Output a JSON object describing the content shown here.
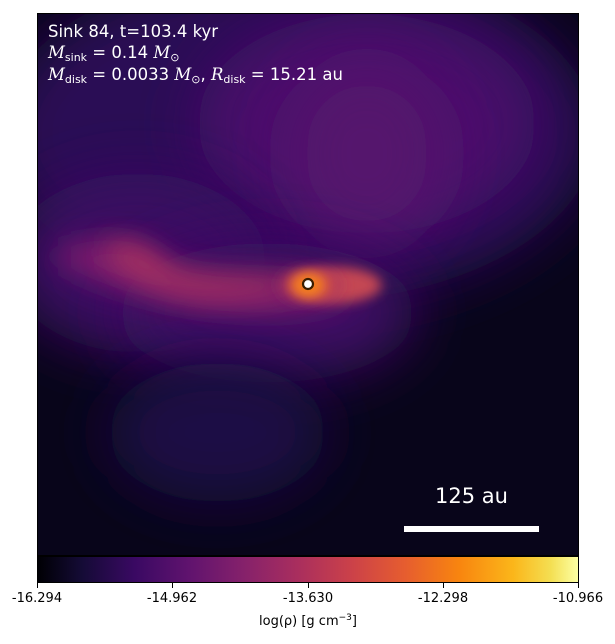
{
  "annotation": {
    "sink_line": "Sink 84, t=103.4 kyr",
    "m_sink_symbol": "M",
    "m_sink_sub": "sink",
    "m_sink_value": " = 0.14 ",
    "m_sun_symbol": "M",
    "m_sun_sub": "⊙",
    "m_disk_symbol": "M",
    "m_disk_sub": "disk",
    "m_disk_value": " = 0.0033 ",
    "r_disk_symbol": "R",
    "r_disk_sub": "disk",
    "r_disk_value": " = 15.21 au",
    "separator": ", "
  },
  "scale_bar": {
    "label": "125 au"
  },
  "colorbar": {
    "colormap": "inferno",
    "label_prefix": "log(ρ) [g cm",
    "label_exponent": "−3",
    "label_suffix": "]",
    "min": -16.294,
    "max": -10.966,
    "ticks": [
      "-16.294",
      "-14.962",
      "-13.630",
      "-12.298",
      "-10.966"
    ]
  },
  "colors": {
    "sink_marker_fill": "#ffffff",
    "sink_marker_edge": "#3a1d00",
    "text": "#ffffff"
  }
}
